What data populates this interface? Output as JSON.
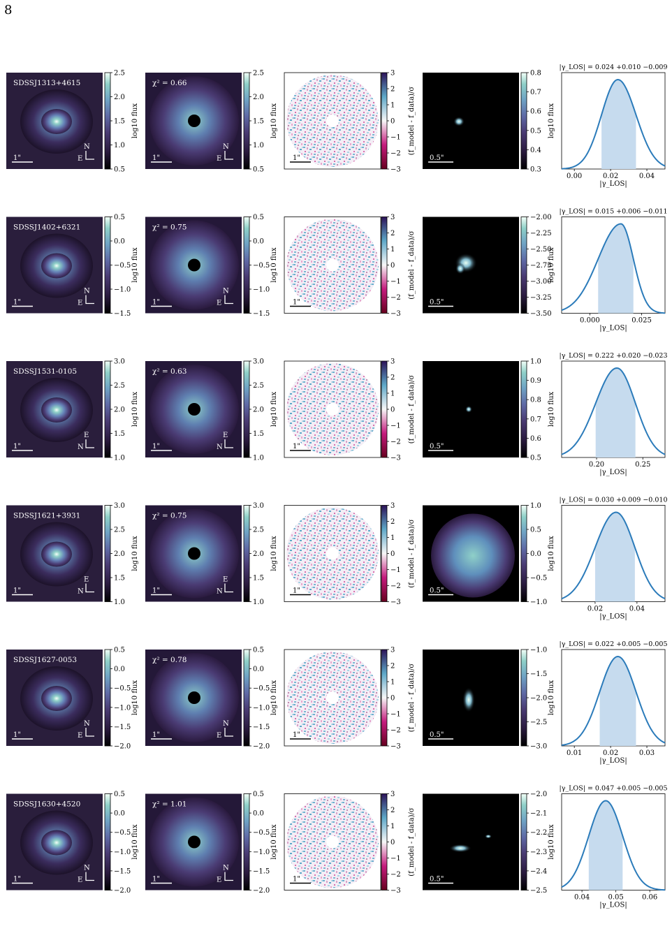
{
  "page_number": "8",
  "colors": {
    "curve": "#2b7bba",
    "interval_fill": "#c6dbee",
    "flux_cmap": [
      "#000000",
      "#2a1a3e",
      "#4a3b73",
      "#5f6aa6",
      "#6fa3c4",
      "#8fd0c8",
      "#f3fff8"
    ],
    "residual_cmap": [
      "#67001f",
      "#c51b7d",
      "#f7f7f7",
      "#5ea8c8",
      "#2c1258"
    ]
  },
  "labels": {
    "flux_cbar": "log10 flux",
    "resid_cbar": "(f_model - f_data)/σ",
    "gamma_axis": "|γ_LOS|",
    "scale_1arcsec": "1\"",
    "scale_half_arcsec": "0.5\""
  },
  "rows": [
    {
      "name": "SDSSJ1313+4615",
      "chi2": "χ² = 0.66",
      "compass": {
        "a": "N",
        "b": "E"
      },
      "data_cbar": [
        "2.5",
        "2.0",
        "1.5",
        "1.0",
        "0.5"
      ],
      "model_cbar": [
        "2.5",
        "2.0",
        "1.5",
        "1.0",
        "0.5"
      ],
      "resid_cbar": [
        "3",
        "2",
        "1",
        "0",
        "−1",
        "−2",
        "−3"
      ],
      "src_cbar": [
        "0.8",
        "0.7",
        "0.6",
        "0.5",
        "0.4",
        "0.3"
      ],
      "gamma": {
        "title": "|γ_LOS| = 0.024 +0.010 −0.009",
        "median": 0.024,
        "plus": 0.01,
        "minus": 0.009
      },
      "gamma_ticks": [
        "0.00",
        "0.02",
        "0.04"
      ]
    },
    {
      "name": "SDSSJ1402+6321",
      "chi2": "χ² = 0.75",
      "compass": {
        "a": "N",
        "b": "E"
      },
      "data_cbar": [
        "0.5",
        "0.0",
        "−0.5",
        "−1.0",
        "−1.5"
      ],
      "model_cbar": [
        "0.5",
        "0.0",
        "−0.5",
        "−1.0",
        "−1.5"
      ],
      "resid_cbar": [
        "3",
        "2",
        "1",
        "0",
        "−1",
        "−2",
        "−3"
      ],
      "src_cbar": [
        "−2.00",
        "−2.25",
        "−2.50",
        "−2.75",
        "−3.00",
        "−3.25",
        "−3.50"
      ],
      "gamma": {
        "title": "|γ_LOS| = 0.015 +0.006 −0.011",
        "median": 0.015,
        "plus": 0.006,
        "minus": 0.011
      },
      "gamma_ticks": [
        "0.000",
        "0.025"
      ]
    },
    {
      "name": "SDSSJ1531-0105",
      "chi2": "χ² = 0.63",
      "compass": {
        "a": "E",
        "b": "N"
      },
      "data_cbar": [
        "3.0",
        "2.5",
        "2.0",
        "1.5",
        "1.0"
      ],
      "model_cbar": [
        "3.0",
        "2.5",
        "2.0",
        "1.5",
        "1.0"
      ],
      "resid_cbar": [
        "3",
        "2",
        "1",
        "0",
        "−1",
        "−2",
        "−3"
      ],
      "src_cbar": [
        "1.0",
        "0.9",
        "0.8",
        "0.7",
        "0.6",
        "0.5"
      ],
      "gamma": {
        "title": "|γ_LOS| = 0.222 +0.020 −0.023",
        "median": 0.222,
        "plus": 0.02,
        "minus": 0.023
      },
      "gamma_ticks": [
        "0.20",
        "0.25"
      ]
    },
    {
      "name": "SDSSJ1621+3931",
      "chi2": "χ² = 0.75",
      "compass": {
        "a": "E",
        "b": "N"
      },
      "data_cbar": [
        "3.0",
        "2.5",
        "2.0",
        "1.5",
        "1.0"
      ],
      "model_cbar": [
        "3.0",
        "2.5",
        "2.0",
        "1.5",
        "1.0"
      ],
      "resid_cbar": [
        "3",
        "2",
        "1",
        "0",
        "−1",
        "−2",
        "−3"
      ],
      "src_cbar": [
        "1.0",
        "0.5",
        "0.0",
        "−0.5",
        "−1.0"
      ],
      "gamma": {
        "title": "|γ_LOS| = 0.030 +0.009 −0.010",
        "median": 0.03,
        "plus": 0.009,
        "minus": 0.01
      },
      "gamma_ticks": [
        "0.02",
        "0.04"
      ]
    },
    {
      "name": "SDSSJ1627-0053",
      "chi2": "χ² = 0.78",
      "compass": {
        "a": "N",
        "b": "E"
      },
      "data_cbar": [
        "0.5",
        "0.0",
        "−0.5",
        "−1.0",
        "−1.5",
        "−2.0"
      ],
      "model_cbar": [
        "0.5",
        "0.0",
        "−0.5",
        "−1.0",
        "−1.5",
        "−2.0"
      ],
      "resid_cbar": [
        "3",
        "2",
        "1",
        "0",
        "−1",
        "−2",
        "−3"
      ],
      "src_cbar": [
        "−1.0",
        "−1.5",
        "−2.0",
        "−2.5",
        "−3.0"
      ],
      "gamma": {
        "title": "|γ_LOS| = 0.022 +0.005 −0.005",
        "median": 0.022,
        "plus": 0.005,
        "minus": 0.005
      },
      "gamma_ticks": [
        "0.01",
        "0.02",
        "0.03"
      ]
    },
    {
      "name": "SDSSJ1630+4520",
      "chi2": "χ² = 1.01",
      "compass": {
        "a": "N",
        "b": "E"
      },
      "data_cbar": [
        "0.5",
        "0.0",
        "−0.5",
        "−1.0",
        "−1.5",
        "−2.0"
      ],
      "model_cbar": [
        "0.5",
        "0.0",
        "−0.5",
        "−1.0",
        "−1.5",
        "−2.0"
      ],
      "resid_cbar": [
        "3",
        "2",
        "1",
        "0",
        "−1",
        "−2",
        "−3"
      ],
      "src_cbar": [
        "−2.0",
        "−2.1",
        "−2.2",
        "−2.3",
        "−2.4",
        "−2.5"
      ],
      "gamma": {
        "title": "|γ_LOS| = 0.047 +0.005 −0.005",
        "median": 0.047,
        "plus": 0.005,
        "minus": 0.005
      },
      "gamma_ticks": [
        "0.04",
        "0.05",
        "0.06"
      ]
    }
  ]
}
